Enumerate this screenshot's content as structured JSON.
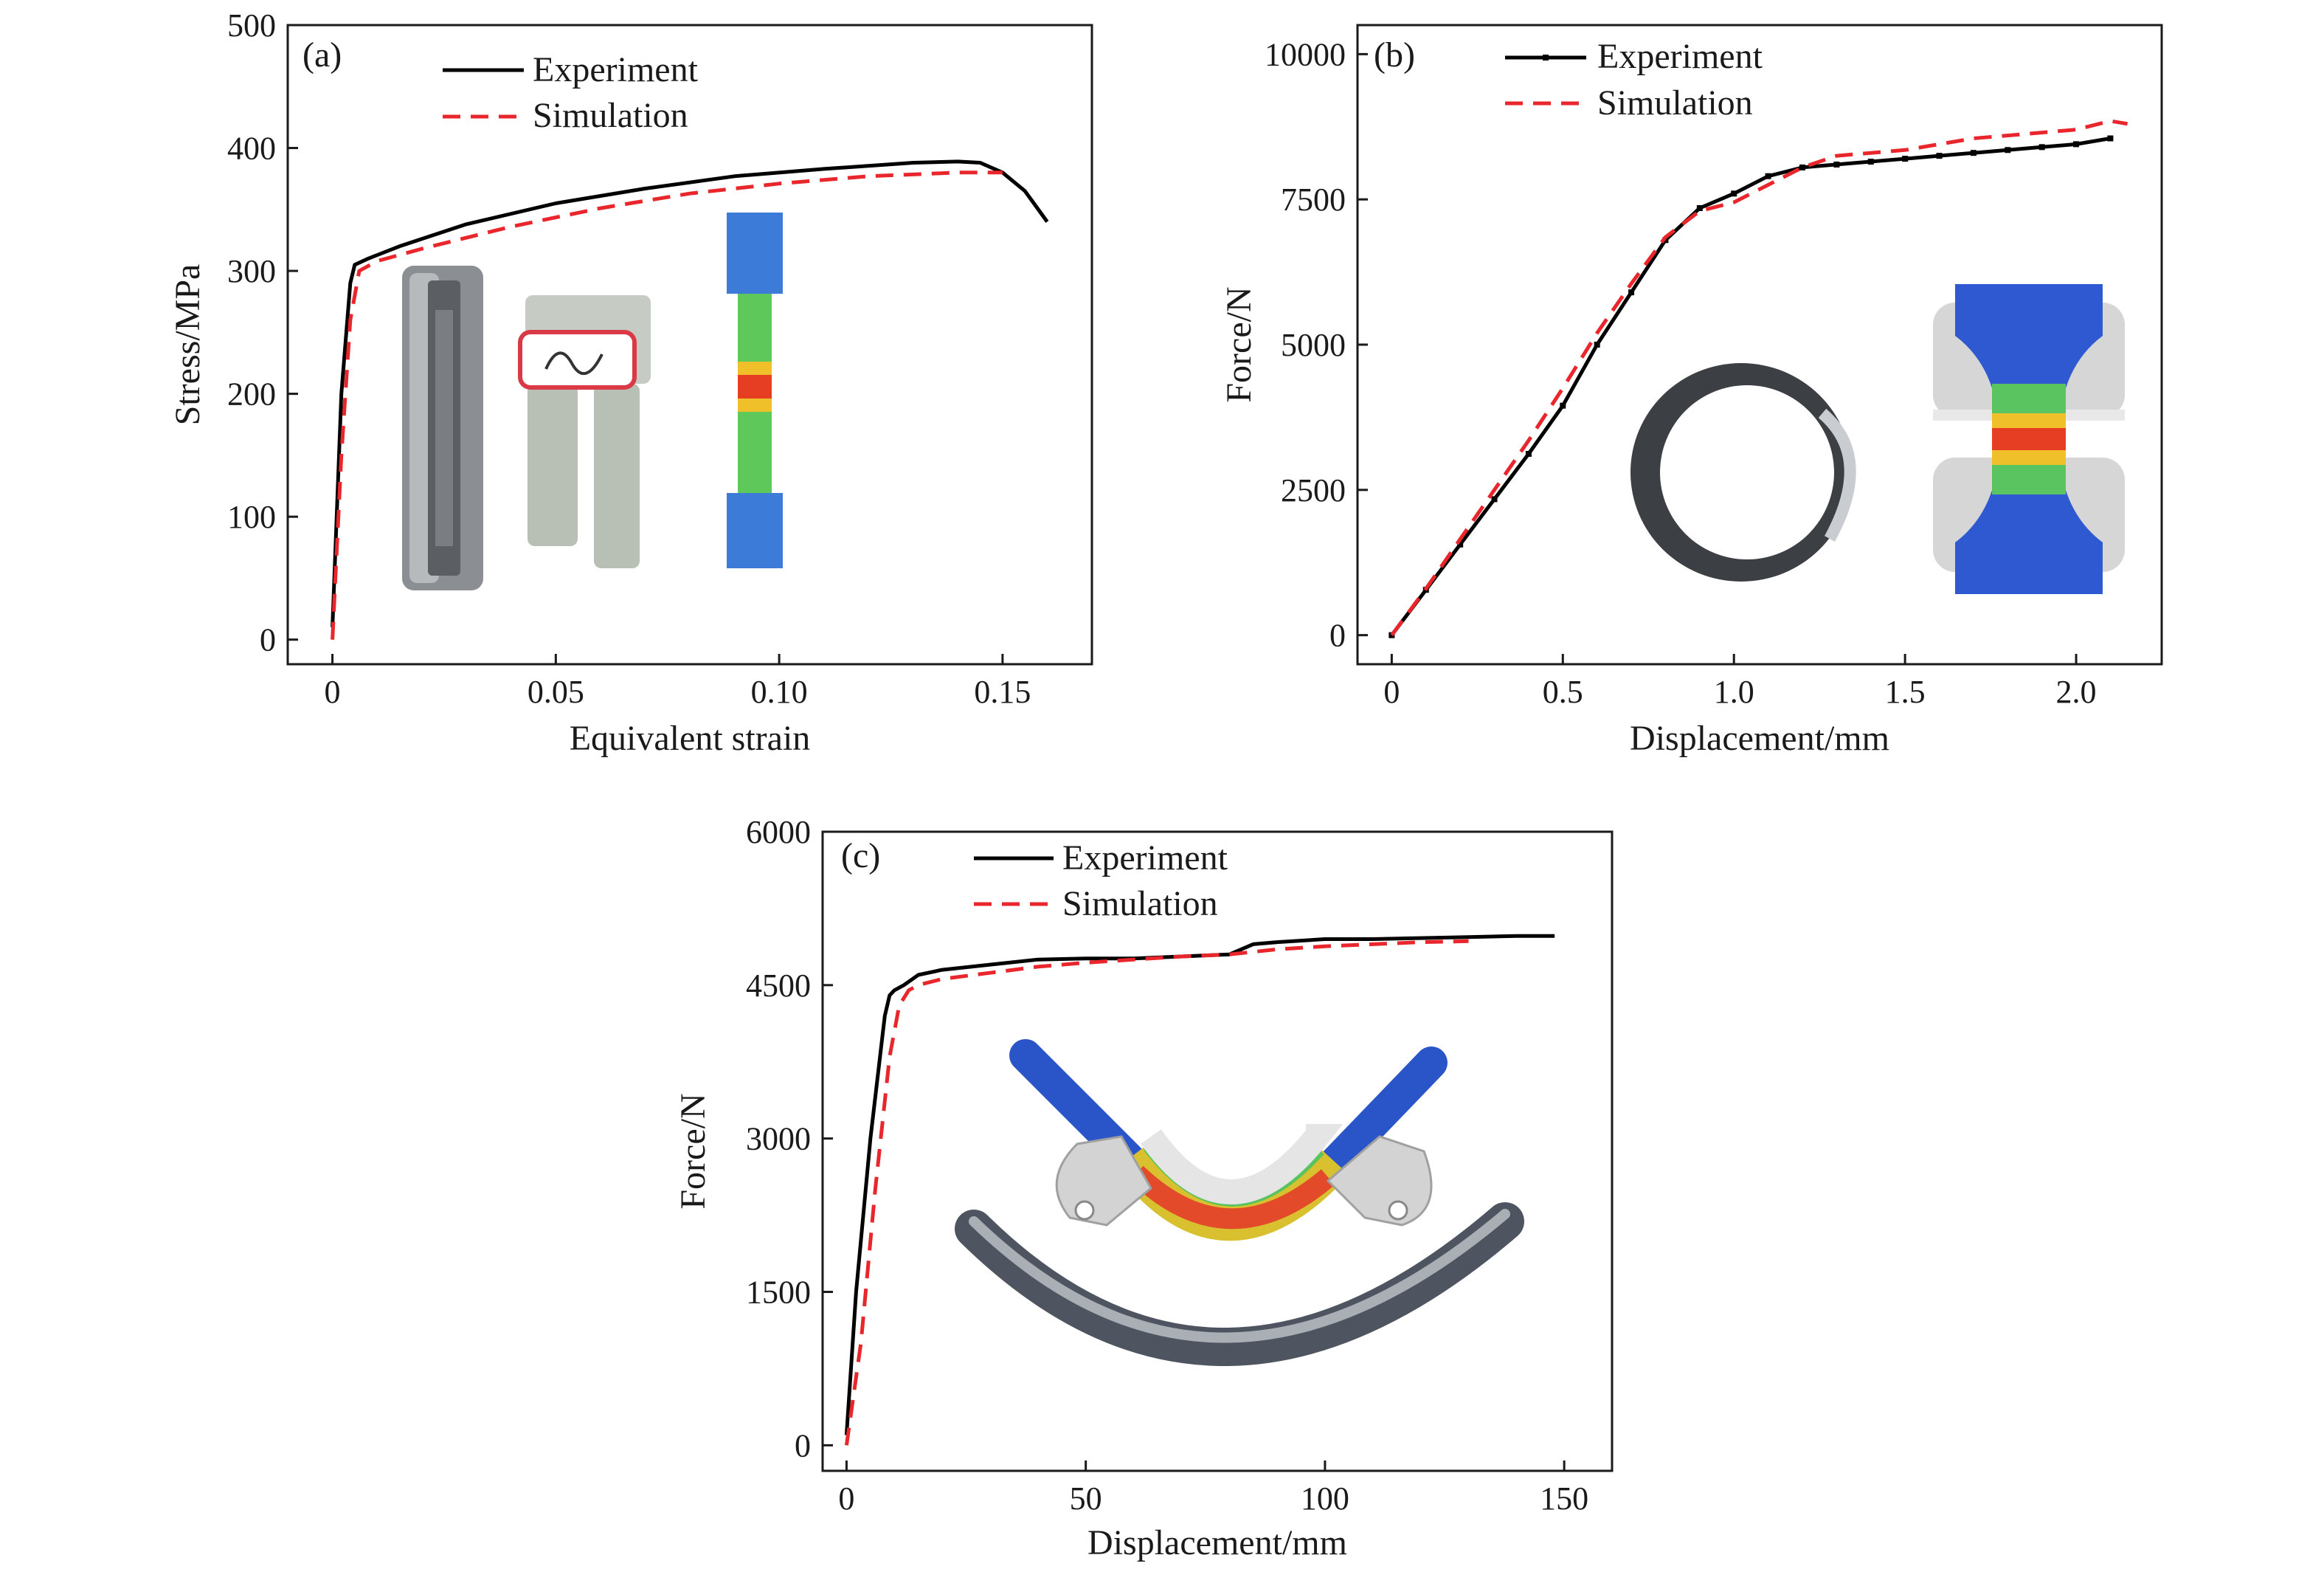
{
  "chart_data": [
    {
      "type": "line",
      "panel_label": "(a)",
      "xlabel": "Equivalent strain",
      "ylabel": "Stress/MPa",
      "xlim": [
        -0.01,
        0.17
      ],
      "ylim": [
        -20,
        500
      ],
      "xticks": [
        0,
        0.05,
        0.1,
        0.15
      ],
      "xtick_labels": [
        "0",
        "0.05",
        "0.10",
        "0.15"
      ],
      "yticks": [
        0,
        100,
        200,
        300,
        400,
        500
      ],
      "ytick_labels": [
        "0",
        "100",
        "200",
        "300",
        "400",
        "500"
      ],
      "grid": false,
      "legend_position": "top-center",
      "series": [
        {
          "name": "Experiment",
          "style": "solid",
          "color": "#000000",
          "x": [
            0,
            0.002,
            0.004,
            0.005,
            0.008,
            0.015,
            0.03,
            0.05,
            0.07,
            0.09,
            0.11,
            0.13,
            0.14,
            0.145,
            0.15,
            0.155,
            0.16
          ],
          "y": [
            10,
            200,
            290,
            305,
            310,
            320,
            338,
            355,
            367,
            377,
            383,
            388,
            389,
            388,
            380,
            365,
            340
          ]
        },
        {
          "name": "Simulation",
          "style": "dashed",
          "color": "#e8262b",
          "x": [
            0,
            0.002,
            0.004,
            0.006,
            0.01,
            0.02,
            0.04,
            0.06,
            0.08,
            0.1,
            0.12,
            0.14,
            0.15
          ],
          "y": [
            0,
            150,
            260,
            300,
            308,
            318,
            336,
            351,
            363,
            371,
            377,
            380,
            380
          ]
        }
      ]
    },
    {
      "type": "line",
      "panel_label": "(b)",
      "xlabel": "Displacement/mm",
      "ylabel": "Force/N",
      "xlim": [
        -0.1,
        2.25
      ],
      "ylim": [
        -500,
        10500
      ],
      "xticks": [
        0,
        0.5,
        1.0,
        1.5,
        2.0
      ],
      "xtick_labels": [
        "0",
        "0.5",
        "1.0",
        "1.5",
        "2.0"
      ],
      "yticks": [
        0,
        2500,
        5000,
        7500,
        10000
      ],
      "ytick_labels": [
        "0",
        "2500",
        "5000",
        "7500",
        "10000"
      ],
      "grid": false,
      "legend_position": "top-center",
      "series": [
        {
          "name": "Experiment",
          "style": "solid-with-markers",
          "color": "#000000",
          "x": [
            0,
            0.1,
            0.2,
            0.3,
            0.4,
            0.5,
            0.6,
            0.7,
            0.8,
            0.9,
            1.0,
            1.1,
            1.2,
            1.3,
            1.4,
            1.5,
            1.6,
            1.7,
            1.8,
            1.9,
            2.0,
            2.1
          ],
          "y": [
            0,
            780,
            1560,
            2340,
            3120,
            3950,
            5000,
            5900,
            6800,
            7350,
            7600,
            7900,
            8050,
            8100,
            8150,
            8200,
            8250,
            8300,
            8350,
            8400,
            8450,
            8550
          ]
        },
        {
          "name": "Simulation",
          "style": "dashed",
          "color": "#e8262b",
          "x": [
            0,
            0.1,
            0.2,
            0.3,
            0.4,
            0.5,
            0.6,
            0.7,
            0.8,
            0.9,
            1.0,
            1.1,
            1.2,
            1.3,
            1.4,
            1.5,
            1.6,
            1.7,
            1.8,
            1.9,
            2.0,
            2.1,
            2.15
          ],
          "y": [
            0,
            800,
            1650,
            2500,
            3350,
            4250,
            5200,
            6050,
            6850,
            7300,
            7450,
            7750,
            8050,
            8250,
            8300,
            8350,
            8450,
            8550,
            8600,
            8650,
            8700,
            8850,
            8800
          ]
        }
      ]
    },
    {
      "type": "line",
      "panel_label": "(c)",
      "xlabel": "Displacement/mm",
      "ylabel": "Force/N",
      "xlim": [
        -5,
        160
      ],
      "ylim": [
        -250,
        6000
      ],
      "xticks": [
        0,
        50,
        100,
        150
      ],
      "xtick_labels": [
        "0",
        "50",
        "100",
        "150"
      ],
      "yticks": [
        0,
        1500,
        3000,
        4500,
        6000
      ],
      "ytick_labels": [
        "0",
        "1500",
        "3000",
        "4500",
        "6000"
      ],
      "grid": false,
      "legend_position": "top-left",
      "series": [
        {
          "name": "Experiment",
          "style": "solid",
          "color": "#000000",
          "x": [
            0,
            2,
            5,
            8,
            9,
            10,
            12,
            15,
            20,
            30,
            40,
            50,
            60,
            70,
            80,
            85,
            90,
            100,
            110,
            120,
            130,
            140,
            148
          ],
          "y": [
            100,
            1500,
            3000,
            4200,
            4400,
            4450,
            4500,
            4600,
            4650,
            4700,
            4750,
            4760,
            4760,
            4780,
            4800,
            4900,
            4920,
            4950,
            4950,
            4960,
            4970,
            4980,
            4980
          ]
        },
        {
          "name": "Simulation",
          "style": "dashed",
          "color": "#e8262b",
          "x": [
            0,
            3,
            6,
            9,
            11,
            13,
            15,
            20,
            30,
            40,
            50,
            60,
            70,
            80,
            90,
            100,
            110,
            120,
            130
          ],
          "y": [
            0,
            1000,
            2500,
            3800,
            4300,
            4450,
            4500,
            4560,
            4620,
            4680,
            4720,
            4750,
            4780,
            4800,
            4850,
            4880,
            4900,
            4920,
            4930
          ]
        }
      ]
    }
  ]
}
